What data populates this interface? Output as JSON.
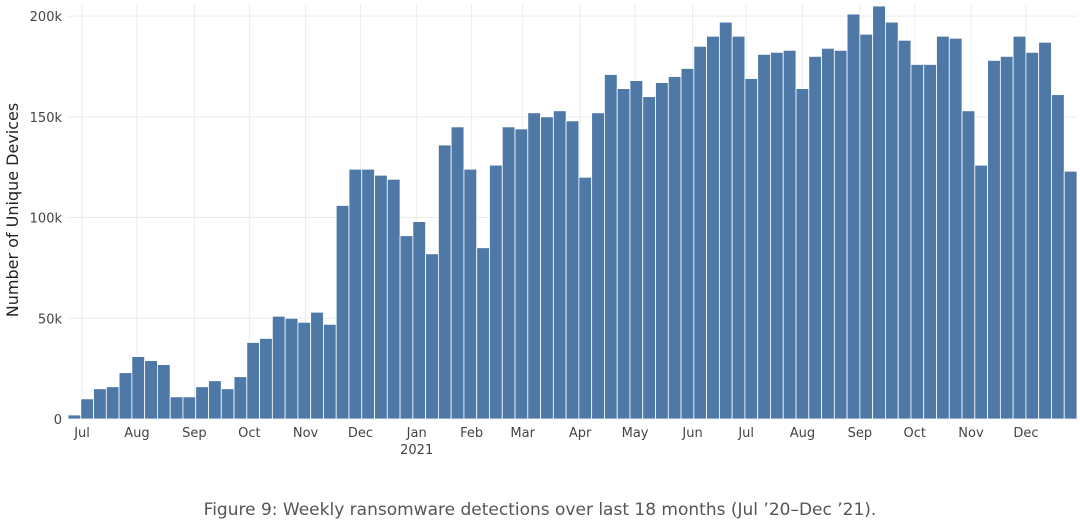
{
  "chart_data": {
    "type": "bar",
    "title": "",
    "xlabel": "",
    "ylabel": "Number of Unique Devices",
    "ylim": [
      0,
      206000
    ],
    "grid": true,
    "color": "#4e79a7",
    "x_unit": "week index starting Jul 2020",
    "values": [
      2000,
      10000,
      15000,
      16000,
      23000,
      31000,
      29000,
      27000,
      11000,
      11000,
      16000,
      19000,
      15000,
      21000,
      38000,
      40000,
      51000,
      50000,
      48000,
      53000,
      47000,
      106000,
      124000,
      124000,
      121000,
      119000,
      91000,
      98000,
      82000,
      136000,
      145000,
      124000,
      85000,
      126000,
      145000,
      144000,
      152000,
      150000,
      153000,
      148000,
      120000,
      152000,
      171000,
      164000,
      168000,
      160000,
      167000,
      170000,
      174000,
      185000,
      190000,
      197000,
      190000,
      169000,
      181000,
      182000,
      183000,
      164000,
      180000,
      184000,
      183000,
      201000,
      191000,
      205000,
      197000,
      188000,
      176000,
      176000,
      190000,
      189000,
      153000,
      126000,
      178000,
      180000,
      190000,
      182000,
      187000,
      161000,
      123000
    ],
    "yticks": [
      {
        "v": 0,
        "label": "0"
      },
      {
        "v": 50000,
        "label": "50k"
      },
      {
        "v": 100000,
        "label": "100k"
      },
      {
        "v": 150000,
        "label": "150k"
      },
      {
        "v": 200000,
        "label": "200k"
      }
    ],
    "xticks": [
      {
        "w": 1.1,
        "label": "Jul"
      },
      {
        "w": 5.4,
        "label": "Aug"
      },
      {
        "w": 9.9,
        "label": "Sep"
      },
      {
        "w": 14.2,
        "label": "Oct"
      },
      {
        "w": 18.6,
        "label": "Nov"
      },
      {
        "w": 22.9,
        "label": "Dec"
      },
      {
        "w": 27.3,
        "label": "Jan",
        "sub": "2021"
      },
      {
        "w": 31.6,
        "label": "Feb"
      },
      {
        "w": 35.6,
        "label": "Mar"
      },
      {
        "w": 40.1,
        "label": "Apr"
      },
      {
        "w": 44.4,
        "label": "May"
      },
      {
        "w": 48.9,
        "label": "Jun"
      },
      {
        "w": 53.1,
        "label": "Jul"
      },
      {
        "w": 57.5,
        "label": "Aug"
      },
      {
        "w": 62.0,
        "label": "Sep"
      },
      {
        "w": 66.3,
        "label": "Oct"
      },
      {
        "w": 70.7,
        "label": "Nov"
      },
      {
        "w": 75.0,
        "label": "Dec"
      }
    ]
  },
  "caption": "Figure 9: Weekly ransomware detections over last 18 months (Jul ’20–Dec ’21)."
}
